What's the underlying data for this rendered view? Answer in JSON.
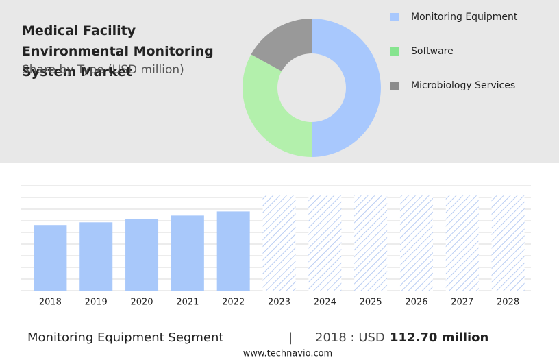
{
  "chart_data": [
    {
      "type": "pie",
      "title": "Medical Facility Environmental Monitoring System Market",
      "subtitle": "Share by Type (USD million)",
      "categories": [
        "Monitoring Equipment",
        "Software",
        "Microbiology Services"
      ],
      "values": [
        50,
        33,
        17
      ],
      "colors": [
        "#a8c8fd",
        "#b3f0ac",
        "#999999"
      ],
      "legend_colors": [
        "#a8c8fd",
        "#86e48f",
        "#8c8c8c"
      ]
    },
    {
      "type": "bar",
      "categories": [
        "2018",
        "2019",
        "2020",
        "2021",
        "2022",
        "2023",
        "2024",
        "2025",
        "2026",
        "2027",
        "2028"
      ],
      "values": [
        112.7,
        117.3,
        123.2,
        129.0,
        136.0,
        null,
        null,
        null,
        null,
        null,
        null
      ],
      "color": "#a8c8fa",
      "ylim": [
        0,
        180
      ]
    }
  ],
  "footer": {
    "segment": "Monitoring Equipment Segment",
    "separator": "|",
    "year_label": "2018 : USD",
    "value_label": "112.70 million",
    "source": "www.technavio.com"
  }
}
